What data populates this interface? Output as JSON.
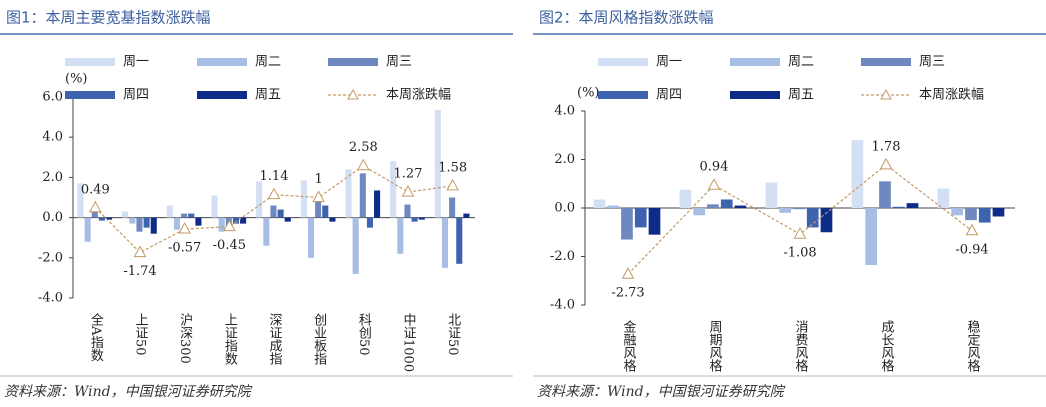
{
  "chart_data": [
    {
      "type": "bar",
      "title": "图1：本周主要宽基指数涨跌幅",
      "y_unit": "(%)",
      "source": "资料来源：Wind，中国银河证券研究院",
      "categories": [
        "全A指数",
        "上证50",
        "沪深300",
        "上证指数",
        "深证成指",
        "创业板指",
        "科创50",
        "中证1000",
        "北证50"
      ],
      "series": [
        {
          "name": "周一",
          "kind": "bar",
          "color": "#d3dff2",
          "values": [
            1.7,
            0.3,
            0.6,
            1.1,
            1.8,
            1.85,
            2.4,
            2.8,
            5.35
          ]
        },
        {
          "name": "周二",
          "kind": "bar",
          "color": "#a8bde3",
          "values": [
            -1.2,
            -0.3,
            -0.6,
            -0.7,
            -1.4,
            -2.0,
            -2.8,
            -1.8,
            -2.5
          ]
        },
        {
          "name": "周三",
          "kind": "bar",
          "color": "#7088c0",
          "values": [
            0.3,
            -0.7,
            0.2,
            -0.4,
            0.6,
            0.9,
            2.2,
            0.65,
            1.0
          ]
        },
        {
          "name": "周四",
          "kind": "bar",
          "color": "#3d63af",
          "values": [
            -0.15,
            -0.5,
            0.2,
            -0.3,
            0.4,
            0.6,
            -0.5,
            -0.2,
            -2.3
          ]
        },
        {
          "name": "周五",
          "kind": "bar",
          "color": "#0d2c8a",
          "values": [
            -0.1,
            -0.8,
            -0.4,
            -0.3,
            -0.2,
            -0.2,
            1.35,
            -0.1,
            0.2
          ]
        },
        {
          "name": "本周涨跌幅",
          "kind": "line",
          "color": "#c49a64",
          "values": [
            0.49,
            -1.74,
            -0.57,
            -0.45,
            1.14,
            1.0,
            2.58,
            1.27,
            1.58
          ]
        }
      ],
      "ylim": [
        -4,
        6
      ],
      "yticks": [
        {
          "value": -4,
          "label": "-4.0"
        },
        {
          "value": -2,
          "label": "-2.0"
        },
        {
          "value": 0,
          "label": "0.0"
        },
        {
          "value": 2,
          "label": "2.0"
        },
        {
          "value": 4,
          "label": "4.0"
        },
        {
          "value": 6,
          "label": "6.0"
        }
      ]
    },
    {
      "type": "bar",
      "title": "图2：本周风格指数涨跌幅",
      "y_unit": "(%)",
      "source": "资料来源：Wind，中国银河证券研究院",
      "categories": [
        "金融风格",
        "周期风格",
        "消费风格",
        "成长风格",
        "稳定风格"
      ],
      "series": [
        {
          "name": "周一",
          "kind": "bar",
          "color": "#d3dff2",
          "values": [
            0.35,
            0.75,
            1.05,
            2.8,
            0.8
          ]
        },
        {
          "name": "周二",
          "kind": "bar",
          "color": "#a8bde3",
          "values": [
            0.1,
            -0.3,
            -0.2,
            -2.35,
            -0.3
          ]
        },
        {
          "name": "周三",
          "kind": "bar",
          "color": "#7088c0",
          "values": [
            -1.3,
            0.15,
            -0.05,
            1.1,
            -0.5
          ]
        },
        {
          "name": "周四",
          "kind": "bar",
          "color": "#3d63af",
          "values": [
            -0.8,
            0.35,
            -0.8,
            0.05,
            -0.6
          ]
        },
        {
          "name": "周五",
          "kind": "bar",
          "color": "#0d2c8a",
          "values": [
            -1.1,
            0.1,
            -1.0,
            0.2,
            -0.35
          ]
        },
        {
          "name": "本周涨跌幅",
          "kind": "line",
          "color": "#c49a64",
          "values": [
            -2.73,
            0.94,
            -1.08,
            1.78,
            -0.94
          ]
        }
      ],
      "ylim": [
        -4,
        4
      ],
      "yticks": [
        {
          "value": -4,
          "label": "-4.0"
        },
        {
          "value": -2,
          "label": "-2.0"
        },
        {
          "value": 0,
          "label": "0.0"
        },
        {
          "value": 2,
          "label": "2.0"
        },
        {
          "value": 4,
          "label": "4.0"
        }
      ]
    }
  ]
}
